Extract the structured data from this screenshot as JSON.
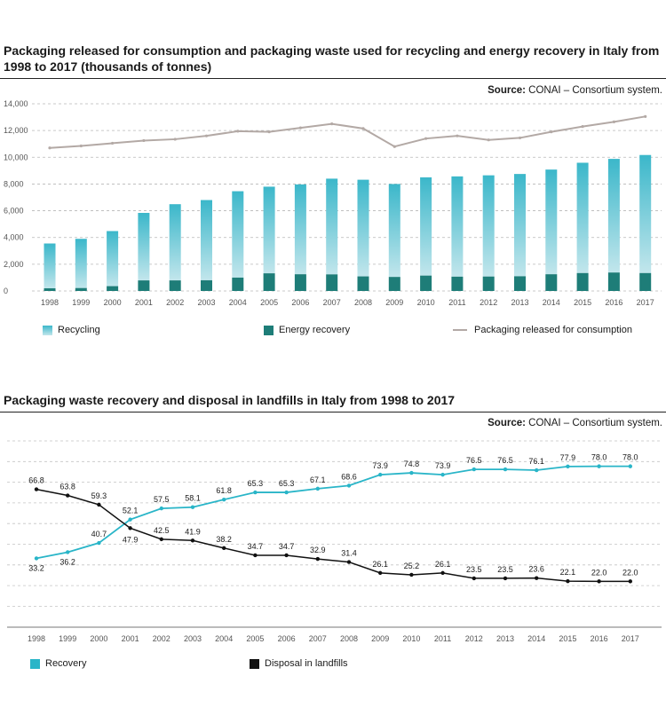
{
  "chart1": {
    "title": "Packaging released for consumption and packaging waste used for recycling and energy recovery in Italy from 1998 to 2017 (thousands of tonnes)",
    "source_label": "Source:",
    "source_text": "CONAI – Consortium system.",
    "legend": {
      "recycling": "Recycling",
      "energy": "Energy recovery",
      "released": "Packaging released for consumption"
    },
    "colors": {
      "recycling_top": "#3bb7ca",
      "recycling_bottom": "#c2e6ec",
      "energy": "#1e7d78",
      "released": "#b3a9a5"
    },
    "y_ticks": [
      "0",
      "2,000",
      "4,000",
      "6,000",
      "8,000",
      "10,000",
      "12,000",
      "14,000"
    ]
  },
  "chart2": {
    "title": "Packaging waste recovery and disposal in landfills in Italy from 1998 to 2017",
    "source_label": "Source:",
    "source_text": "CONAI – Consortium system.",
    "legend": {
      "recovery": "Recovery",
      "disposal": "Disposal in landfills"
    },
    "colors": {
      "recovery": "#29b5c8",
      "disposal": "#111111"
    }
  },
  "chart_data": [
    {
      "type": "bar",
      "title": "Packaging released for consumption and packaging waste used for recycling and energy recovery in Italy from 1998 to 2017 (thousands of tonnes)",
      "categories": [
        "1998",
        "1999",
        "2000",
        "2001",
        "2002",
        "2003",
        "2004",
        "2005",
        "2006",
        "2007",
        "2008",
        "2009",
        "2010",
        "2011",
        "2012",
        "2013",
        "2014",
        "2015",
        "2016",
        "2017"
      ],
      "ylim": [
        0,
        14000
      ],
      "series": [
        {
          "name": "Energy recovery",
          "values": [
            200,
            220,
            360,
            790,
            790,
            800,
            1000,
            1320,
            1250,
            1240,
            1090,
            1050,
            1150,
            1070,
            1080,
            1100,
            1250,
            1340,
            1380,
            1340
          ]
        },
        {
          "name": "Recycling",
          "values": [
            3350,
            3680,
            4120,
            5050,
            5700,
            6000,
            6460,
            6480,
            6720,
            7160,
            7230,
            6950,
            7350,
            7500,
            7570,
            7650,
            7830,
            8250,
            8500,
            8830
          ]
        },
        {
          "name": "Packaging released for consumption",
          "type": "line",
          "values": [
            10700,
            10850,
            11050,
            11250,
            11350,
            11600,
            11950,
            11900,
            12200,
            12500,
            12150,
            10800,
            11400,
            11600,
            11300,
            11450,
            11900,
            12300,
            12650,
            13050
          ]
        }
      ],
      "grid": true,
      "legend": "bottom"
    },
    {
      "type": "line",
      "title": "Packaging waste recovery and disposal in landfills in Italy from 1998 to 2017",
      "x": [
        "1998",
        "1999",
        "2000",
        "2001",
        "2002",
        "2003",
        "2004",
        "2005",
        "2006",
        "2007",
        "2008",
        "2009",
        "2010",
        "2011",
        "2012",
        "2013",
        "2014",
        "2015",
        "2016",
        "2017"
      ],
      "series": [
        {
          "name": "Recovery",
          "values": [
            33.2,
            36.2,
            40.7,
            52.1,
            57.5,
            58.1,
            61.8,
            65.3,
            65.3,
            67.1,
            68.6,
            73.9,
            74.8,
            73.9,
            76.5,
            76.5,
            76.1,
            77.9,
            78.0,
            78.0
          ]
        },
        {
          "name": "Disposal in landfills",
          "values": [
            66.8,
            63.8,
            59.3,
            47.9,
            42.5,
            41.9,
            38.2,
            34.7,
            34.7,
            32.9,
            31.4,
            26.1,
            25.2,
            26.1,
            23.5,
            23.5,
            23.6,
            22.1,
            22.0,
            22.0
          ]
        }
      ],
      "labels": {
        "Recovery": [
          "33.2",
          "36.2",
          "40.7",
          "52.1",
          "57.5",
          "58.1",
          "61.8",
          "65.3",
          "65.3",
          "67.1",
          "68.6",
          "73.9",
          "74.8",
          "73.9",
          "76.5",
          "76.5",
          "76.1",
          "77.9",
          "78.0",
          "78.0"
        ],
        "Disposal in landfills": [
          "66.8",
          "63.8",
          "59.3",
          "47.9",
          "42.5",
          "41.9",
          "38.2",
          "34.7",
          "34.7",
          "32.9",
          "31.4",
          "26.1",
          "25.2",
          "26.1",
          "23.5",
          "23.5",
          "23.6",
          "22.1",
          "22.0",
          "22.0"
        ]
      },
      "grid": true,
      "legend": "bottom"
    }
  ]
}
